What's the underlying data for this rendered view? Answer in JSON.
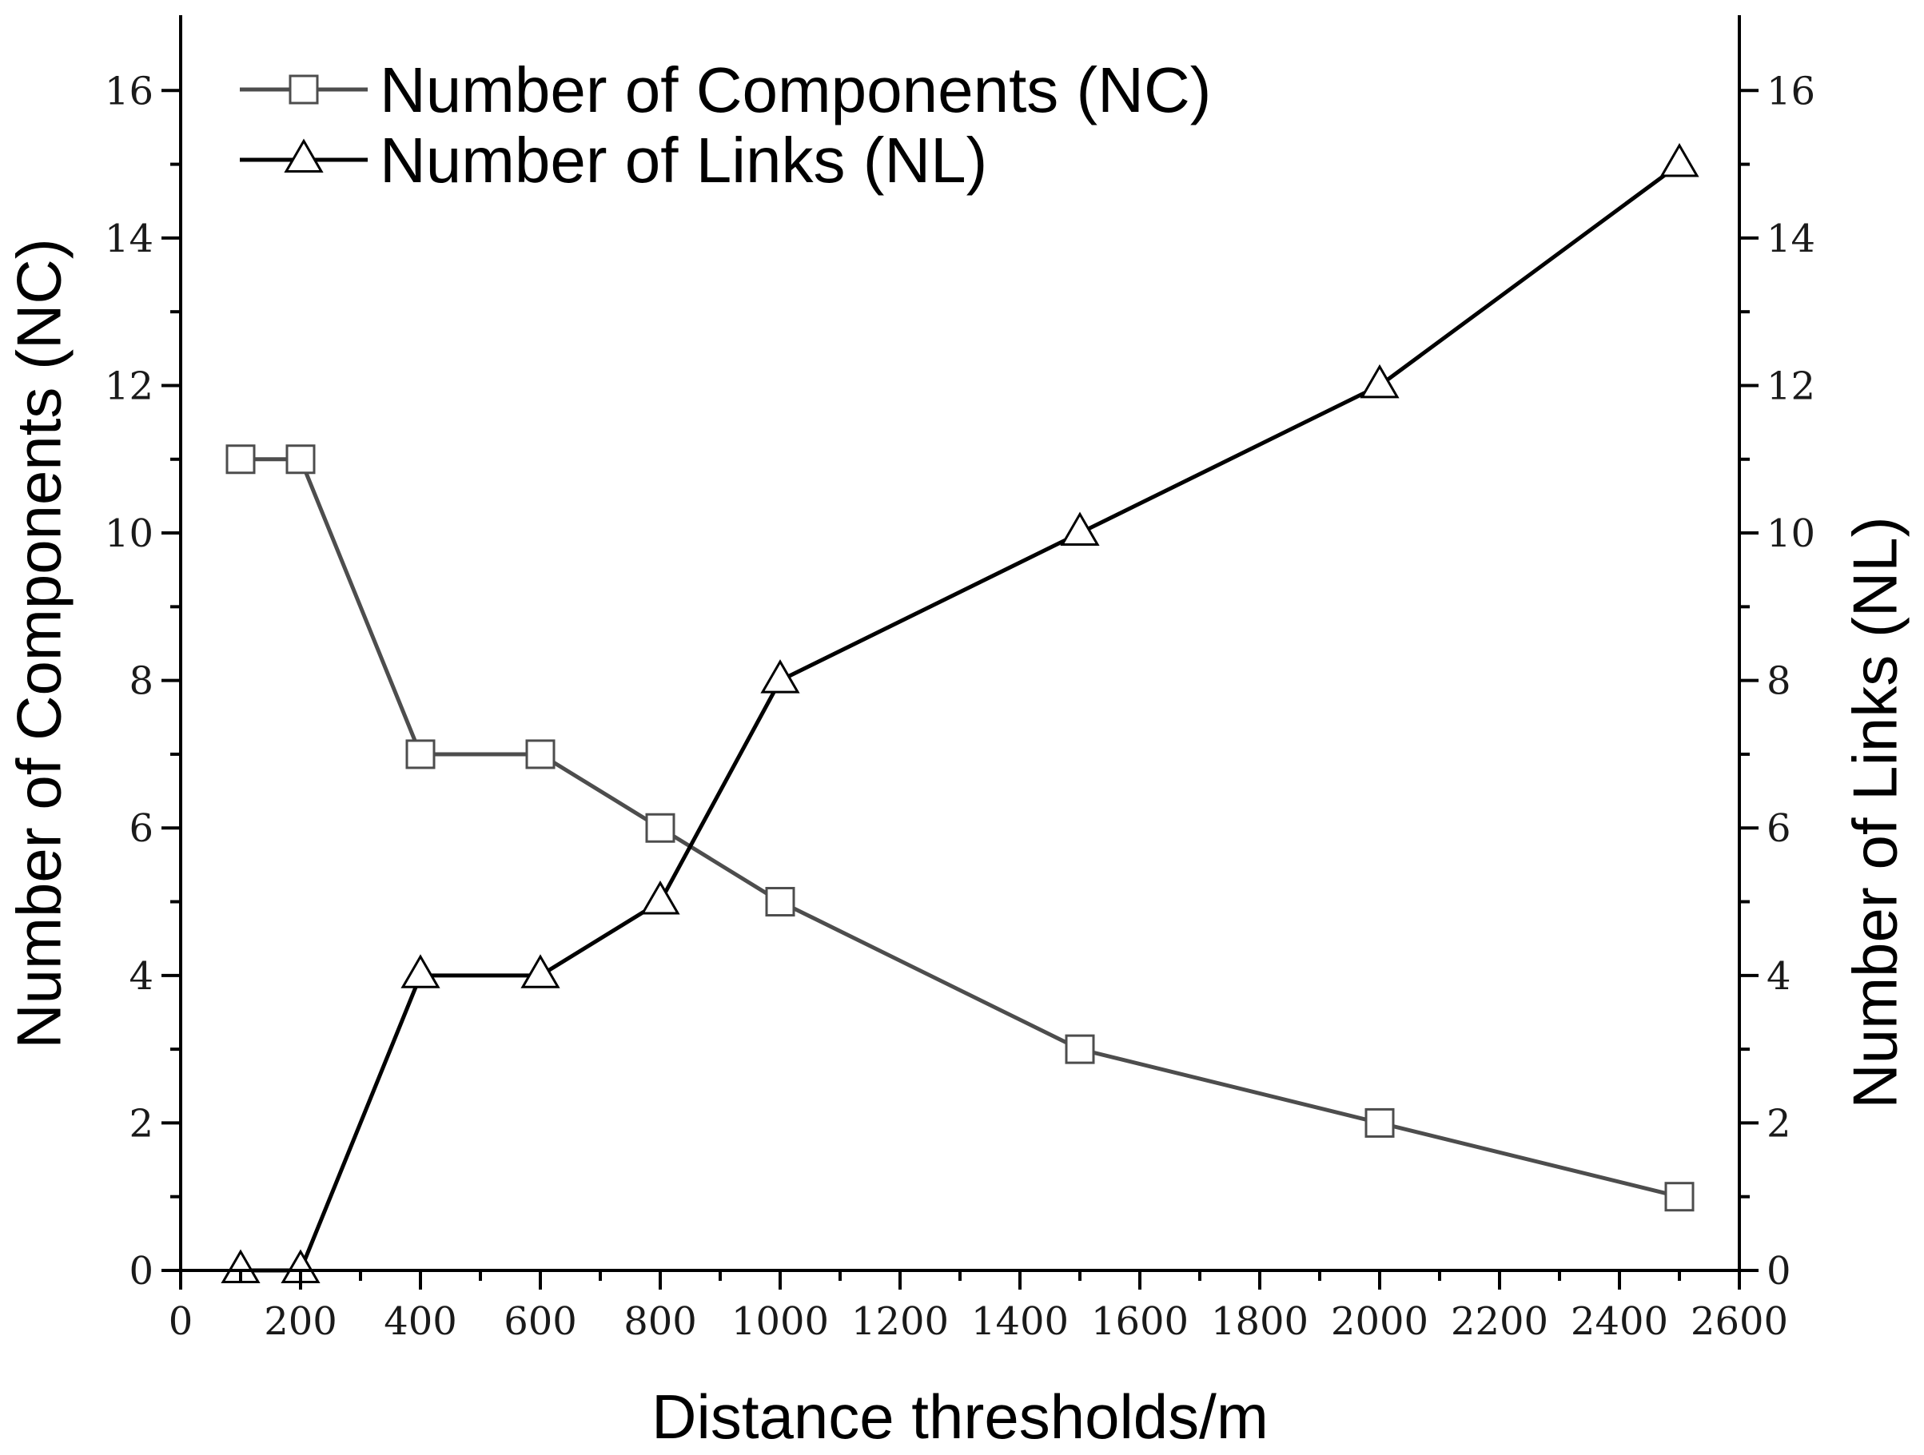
{
  "chart_data": {
    "type": "line",
    "title": "",
    "xlabel": "Distance thresholds/m",
    "ylabel_left": "Number of Components (NC)",
    "ylabel_right": "Number of Links (NL)",
    "xlim": [
      0,
      2600
    ],
    "ylim": [
      0,
      17
    ],
    "x_ticks": [
      0,
      200,
      400,
      600,
      800,
      1000,
      1200,
      1400,
      1600,
      1800,
      2000,
      2200,
      2400,
      2600
    ],
    "y_ticks": [
      0,
      2,
      4,
      6,
      8,
      10,
      12,
      14,
      16
    ],
    "grid": false,
    "legend_position": "top-left",
    "x": [
      100,
      200,
      400,
      600,
      800,
      1000,
      1500,
      2000,
      2500
    ],
    "series": [
      {
        "name": "Number of Components (NC)",
        "axis": "left",
        "marker": "square",
        "color": "#4d4d4d",
        "values": [
          11,
          11,
          7,
          7,
          6,
          5,
          3,
          2,
          1
        ]
      },
      {
        "name": "Number of Links (NL)",
        "axis": "right",
        "marker": "triangle",
        "color": "#000000",
        "values": [
          0,
          0,
          4,
          4,
          5,
          8,
          10,
          12,
          15
        ]
      }
    ]
  }
}
